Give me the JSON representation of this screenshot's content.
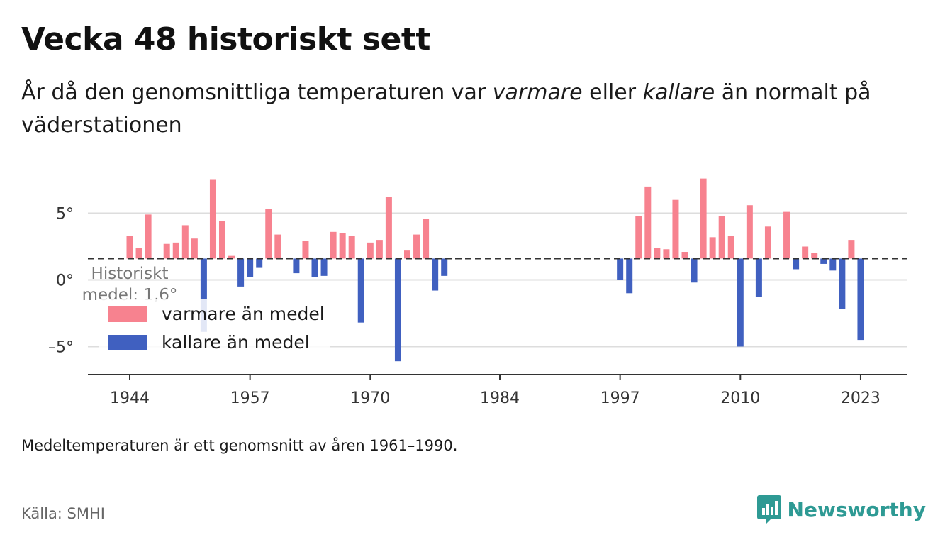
{
  "title": "Vecka 48 historiskt sett",
  "subtitle": {
    "part1": "År då den genomsnittliga temperaturen var ",
    "warm_word": "varmare",
    "part2": " eller ",
    "cold_word": "kallare",
    "part3": " än normalt på väderstationen"
  },
  "footnote": "Medeltemperaturen är ett genomsnitt av åren 1961–1990.",
  "source": "Källa: SMHI",
  "brand": "Newsworthy",
  "colors": {
    "warm": "#f7828f",
    "cold": "#4060c0",
    "grid": "#dddddd",
    "axis": "#333333",
    "brand": "#2e9a94"
  },
  "chart_data": {
    "type": "bar",
    "x_ticks": [
      "1944",
      "1957",
      "1970",
      "1984",
      "1997",
      "2010",
      "2023"
    ],
    "y_ticks": [
      "5°",
      "0°",
      "–5°"
    ],
    "y_tick_values": [
      5,
      0,
      -5
    ],
    "xlim": [
      1940,
      2028
    ],
    "ylim": [
      -7,
      8.5
    ],
    "mean_value": 1.6,
    "mean_label_line1": "Historiskt",
    "mean_label_line2": "medel: 1,6°",
    "legend": {
      "warm": "varmare än medel",
      "cold": "kallare än medel"
    },
    "years": [
      1944,
      1945,
      1946,
      1948,
      1949,
      1950,
      1951,
      1952,
      1953,
      1954,
      1955,
      1956,
      1957,
      1958,
      1959,
      1960,
      1962,
      1963,
      1964,
      1965,
      1966,
      1967,
      1968,
      1969,
      1970,
      1971,
      1972,
      1973,
      1974,
      1975,
      1976,
      1977,
      1978,
      1997,
      1998,
      1999,
      2000,
      2001,
      2002,
      2003,
      2004,
      2005,
      2006,
      2007,
      2008,
      2009,
      2010,
      2011,
      2012,
      2013,
      2015,
      2016,
      2017,
      2018,
      2019,
      2020,
      2021,
      2022,
      2023
    ],
    "values": [
      3.3,
      2.4,
      4.9,
      2.7,
      2.8,
      4.1,
      3.1,
      -3.9,
      7.5,
      4.4,
      1.8,
      -0.5,
      0.2,
      0.9,
      5.3,
      3.4,
      0.5,
      2.9,
      0.2,
      0.3,
      3.6,
      3.5,
      3.3,
      -3.2,
      2.8,
      3.0,
      6.2,
      -6.1,
      2.2,
      3.4,
      4.6,
      -0.8,
      0.3,
      0.0,
      -1.0,
      4.8,
      7.0,
      2.4,
      2.3,
      6.0,
      2.1,
      -0.2,
      7.6,
      3.2,
      4.8,
      3.3,
      -5.0,
      5.6,
      -1.3,
      4.0,
      5.1,
      0.8,
      2.5,
      2.0,
      1.2,
      0.7,
      -2.2,
      3.0,
      -4.5
    ]
  }
}
